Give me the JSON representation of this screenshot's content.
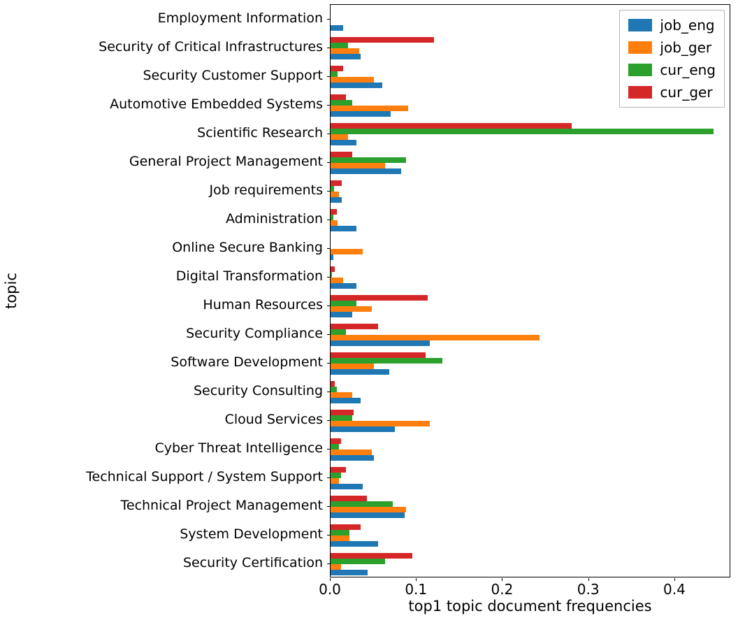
{
  "chart_data": {
    "type": "bar",
    "orientation": "horizontal",
    "title": "",
    "xlabel": "top1 topic document frequencies",
    "ylabel": "topic",
    "xlim": [
      0,
      0.465
    ],
    "xticks": [
      0.0,
      0.1,
      0.2,
      0.3,
      0.4
    ],
    "grid": false,
    "legend_position": "upper right",
    "categories": [
      "Employment Information",
      "Security of Critical Infrastructures",
      "Security Customer Support",
      "Automotive Embedded Systems",
      "Scientific Research",
      "General Project Management",
      "Job requirements",
      "Administration",
      "Online Secure Banking",
      "Digital Transformation",
      "Human Resources",
      "Security Compliance",
      "Software Development",
      "Security Consulting",
      "Cloud Services",
      "Cyber Threat Intelligence",
      "Technical Support / System Support",
      "Technical Project Management",
      "System Development",
      "Security Certification"
    ],
    "series": [
      {
        "name": "job_eng",
        "color": "#1f77b4",
        "values": [
          0.015,
          0.035,
          0.06,
          0.07,
          0.03,
          0.082,
          0.013,
          0.03,
          0.003,
          0.03,
          0.025,
          0.115,
          0.068,
          0.035,
          0.075,
          0.05,
          0.037,
          0.086,
          0.055,
          0.043
        ]
      },
      {
        "name": "job_ger",
        "color": "#ff7f0e",
        "values": [
          0.0,
          0.033,
          0.05,
          0.09,
          0.02,
          0.063,
          0.01,
          0.008,
          0.037,
          0.015,
          0.048,
          0.243,
          0.05,
          0.025,
          0.115,
          0.048,
          0.01,
          0.088,
          0.022,
          0.012
        ]
      },
      {
        "name": "cur_eng",
        "color": "#2ca02c",
        "values": [
          0.0,
          0.02,
          0.008,
          0.025,
          0.445,
          0.088,
          0.004,
          0.003,
          0.0,
          0.002,
          0.03,
          0.018,
          0.13,
          0.007,
          0.025,
          0.01,
          0.012,
          0.072,
          0.022,
          0.063
        ]
      },
      {
        "name": "cur_ger",
        "color": "#d62728",
        "values": [
          0.0,
          0.12,
          0.015,
          0.018,
          0.28,
          0.025,
          0.013,
          0.007,
          0.0,
          0.005,
          0.113,
          0.055,
          0.11,
          0.005,
          0.027,
          0.012,
          0.018,
          0.042,
          0.035,
          0.095
        ]
      }
    ]
  }
}
